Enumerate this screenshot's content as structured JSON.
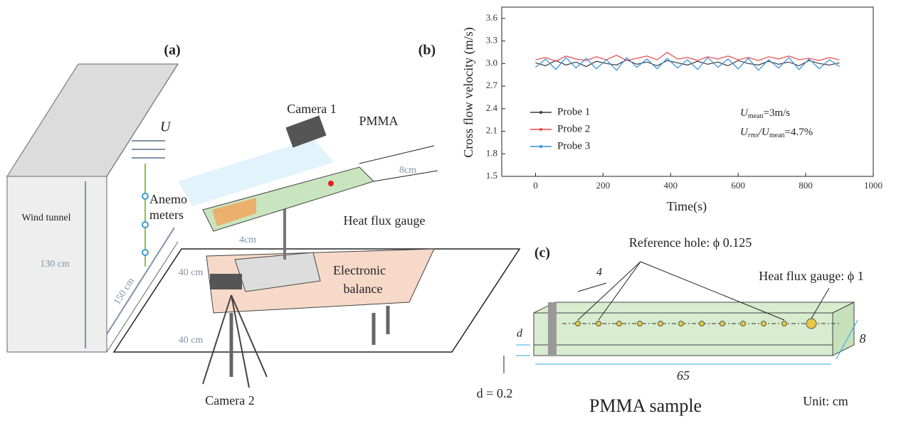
{
  "panel_a": {
    "label": "(a)",
    "flow": "U",
    "camera_1": "Camera 1",
    "pmma": "PMMA",
    "width": "8cm",
    "anemometers": [
      "Anemo",
      "meters"
    ],
    "wind_tunnel": "Wind tunnel",
    "height": "130 cm",
    "depth": "150 cm",
    "distance_1": "40 cm",
    "distance_2": "40 cm",
    "spacing": "4cm",
    "heat_flux_gauge": "Heat flux gauge",
    "balance": [
      "Electronic",
      "balance"
    ],
    "camera_2": "Camera 2"
  },
  "chart_data": {
    "type": "line",
    "label": "(b)",
    "xlabel": "Time(s)",
    "ylabel": "Cross flow velocity (m/s)",
    "xlim": [
      -100,
      1000
    ],
    "ylim": [
      1.5,
      3.75
    ],
    "xticks": [
      0,
      200,
      400,
      600,
      800,
      1000
    ],
    "yticks": [
      1.5,
      1.8,
      2.1,
      2.4,
      2.7,
      {
        "value": 3,
        "label": "3.0"
      },
      3.3,
      3.6
    ],
    "legend": "lower left",
    "x": [
      0,
      30,
      60,
      90,
      120,
      150,
      180,
      210,
      240,
      270,
      300,
      330,
      360,
      390,
      420,
      450,
      480,
      510,
      540,
      570,
      600,
      630,
      660,
      690,
      720,
      750,
      780,
      810,
      840,
      870,
      900
    ],
    "series": [
      {
        "name": "Probe 1",
        "color": "#3a3a3a",
        "values": [
          3.01,
          2.97,
          3.04,
          2.98,
          3.02,
          2.96,
          3.03,
          3.0,
          2.98,
          3.05,
          2.99,
          3.02,
          2.97,
          3.04,
          3.01,
          2.98,
          3.03,
          2.99,
          3.02,
          2.97,
          3.04,
          3.0,
          2.98,
          3.03,
          2.99,
          3.02,
          2.97,
          3.04,
          3.0,
          2.98,
          3.01
        ]
      },
      {
        "name": "Probe 2",
        "color": "#e8474b",
        "values": [
          3.05,
          3.08,
          3.03,
          3.1,
          3.06,
          3.04,
          3.09,
          3.05,
          3.11,
          3.04,
          3.07,
          3.1,
          3.05,
          3.15,
          3.06,
          3.08,
          3.04,
          3.09,
          3.06,
          3.1,
          3.05,
          3.08,
          3.04,
          3.09,
          3.06,
          3.1,
          3.05,
          3.07,
          3.04,
          3.08,
          3.05
        ]
      },
      {
        "name": "Probe 3",
        "color": "#2f8fd8",
        "values": [
          2.95,
          3.06,
          2.92,
          3.08,
          2.94,
          3.07,
          2.93,
          3.05,
          2.91,
          3.08,
          2.95,
          3.06,
          2.93,
          3.07,
          2.94,
          3.05,
          2.92,
          3.08,
          2.95,
          3.06,
          2.93,
          3.07,
          2.91,
          3.05,
          2.94,
          3.08,
          2.92,
          3.06,
          2.93,
          3.05,
          2.96
        ]
      }
    ],
    "annotation_1": {
      "main": "U",
      "sub": "mean",
      "rest": "=3m/s"
    },
    "annotation_2": {
      "main": "U",
      "sub": "rms",
      "mid": "/U",
      "sub2": "mean",
      "rest": "=4.7%"
    }
  },
  "panel_c": {
    "label": "(c)",
    "reference_hole": "Reference hole: ϕ 0.125",
    "gauge": "Heat flux gauge: ϕ 1",
    "spacing": "4",
    "thickness": "d",
    "width": "8",
    "length": "65",
    "d_value": "d = 0.2",
    "title": "PMMA sample",
    "unit": "Unit: cm"
  }
}
